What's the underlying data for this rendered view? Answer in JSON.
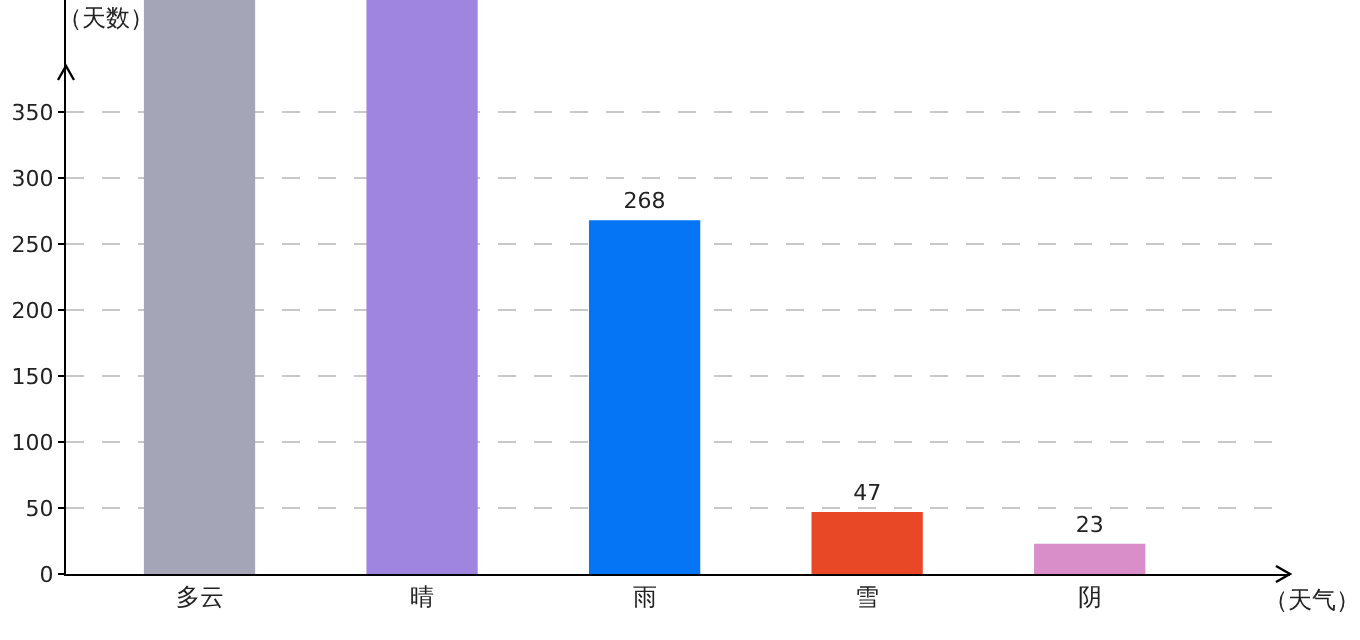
{
  "chart_data": {
    "type": "bar",
    "xlabel": "（天气）",
    "ylabel": "（天数）",
    "categories": [
      "多云",
      "晴",
      "雨",
      "雪",
      "阴"
    ],
    "values": [
      435,
      435,
      268,
      47,
      23
    ],
    "colors": [
      "#a5a5b8",
      "#a085e0",
      "#0575f5",
      "#e84825",
      "#d98ec9"
    ],
    "value_labels": [
      null,
      null,
      "268",
      "47",
      "23"
    ],
    "ylim": [
      0,
      435
    ],
    "yticks": [
      0,
      50,
      100,
      150,
      200,
      250,
      300,
      350
    ],
    "grid": "y"
  }
}
